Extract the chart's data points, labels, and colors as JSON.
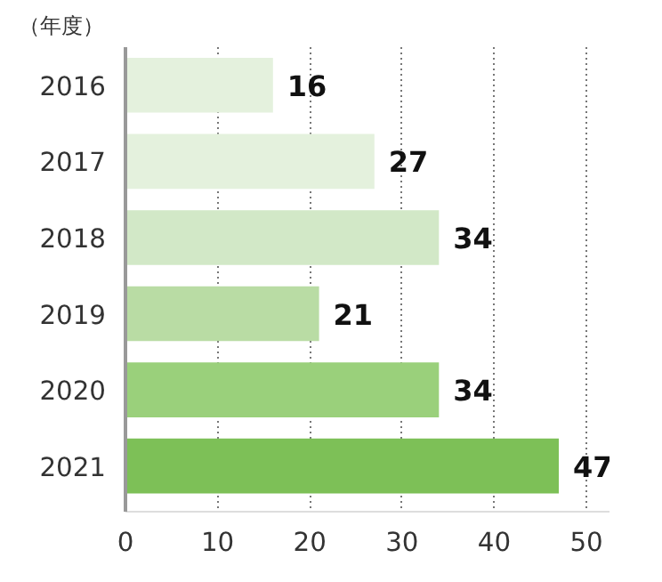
{
  "chart_data": {
    "type": "bar",
    "orientation": "horizontal",
    "ylabel": "（年度）",
    "categories": [
      "2016",
      "2017",
      "2018",
      "2019",
      "2020",
      "2021"
    ],
    "values": [
      16,
      27,
      34,
      21,
      34,
      47
    ],
    "colors": [
      "#e4f1dd",
      "#e4f1dd",
      "#d2e8c7",
      "#b9dca4",
      "#9ad07b",
      "#7dc057"
    ],
    "xlim": [
      0,
      52.5
    ],
    "xticks": [
      0,
      10,
      20,
      30,
      40,
      50
    ],
    "grid": "x",
    "line_style": "dotted",
    "data_labels": true
  }
}
